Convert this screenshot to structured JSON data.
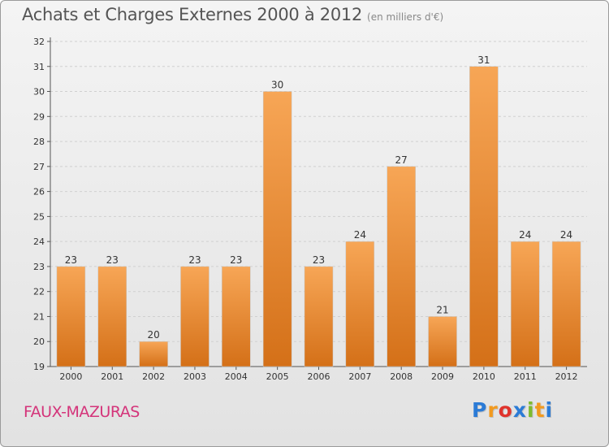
{
  "title": "Achats et Charges Externes 2000 à 2012",
  "unit": "(en milliers d'€)",
  "town": "FAUX-MAZURAS",
  "logo": {
    "letters": [
      "P",
      "r",
      "o",
      "x",
      "i",
      "t",
      "i"
    ],
    "colors": [
      "#2b7bd6",
      "#f29a1f",
      "#e0332c",
      "#2b7bd6",
      "#7dbb2e",
      "#f29a1f",
      "#2b7bd6"
    ]
  },
  "colors": {
    "bar_light": "#f7a656",
    "bar_dark": "#d47018",
    "grid": "#d0d0d0"
  },
  "chart_data": {
    "type": "bar",
    "categories": [
      "2000",
      "2001",
      "2002",
      "2003",
      "2004",
      "2005",
      "2006",
      "2007",
      "2008",
      "2009",
      "2010",
      "2011",
      "2012"
    ],
    "values": [
      23,
      23,
      20,
      23,
      23,
      30,
      23,
      24,
      27,
      21,
      31,
      24,
      24
    ],
    "title": "Achats et Charges Externes 2000 à 2012",
    "ylim": [
      19,
      32
    ],
    "yticks": [
      19,
      20,
      21,
      22,
      23,
      24,
      25,
      26,
      27,
      28,
      29,
      30,
      31,
      32
    ],
    "grid": true
  }
}
